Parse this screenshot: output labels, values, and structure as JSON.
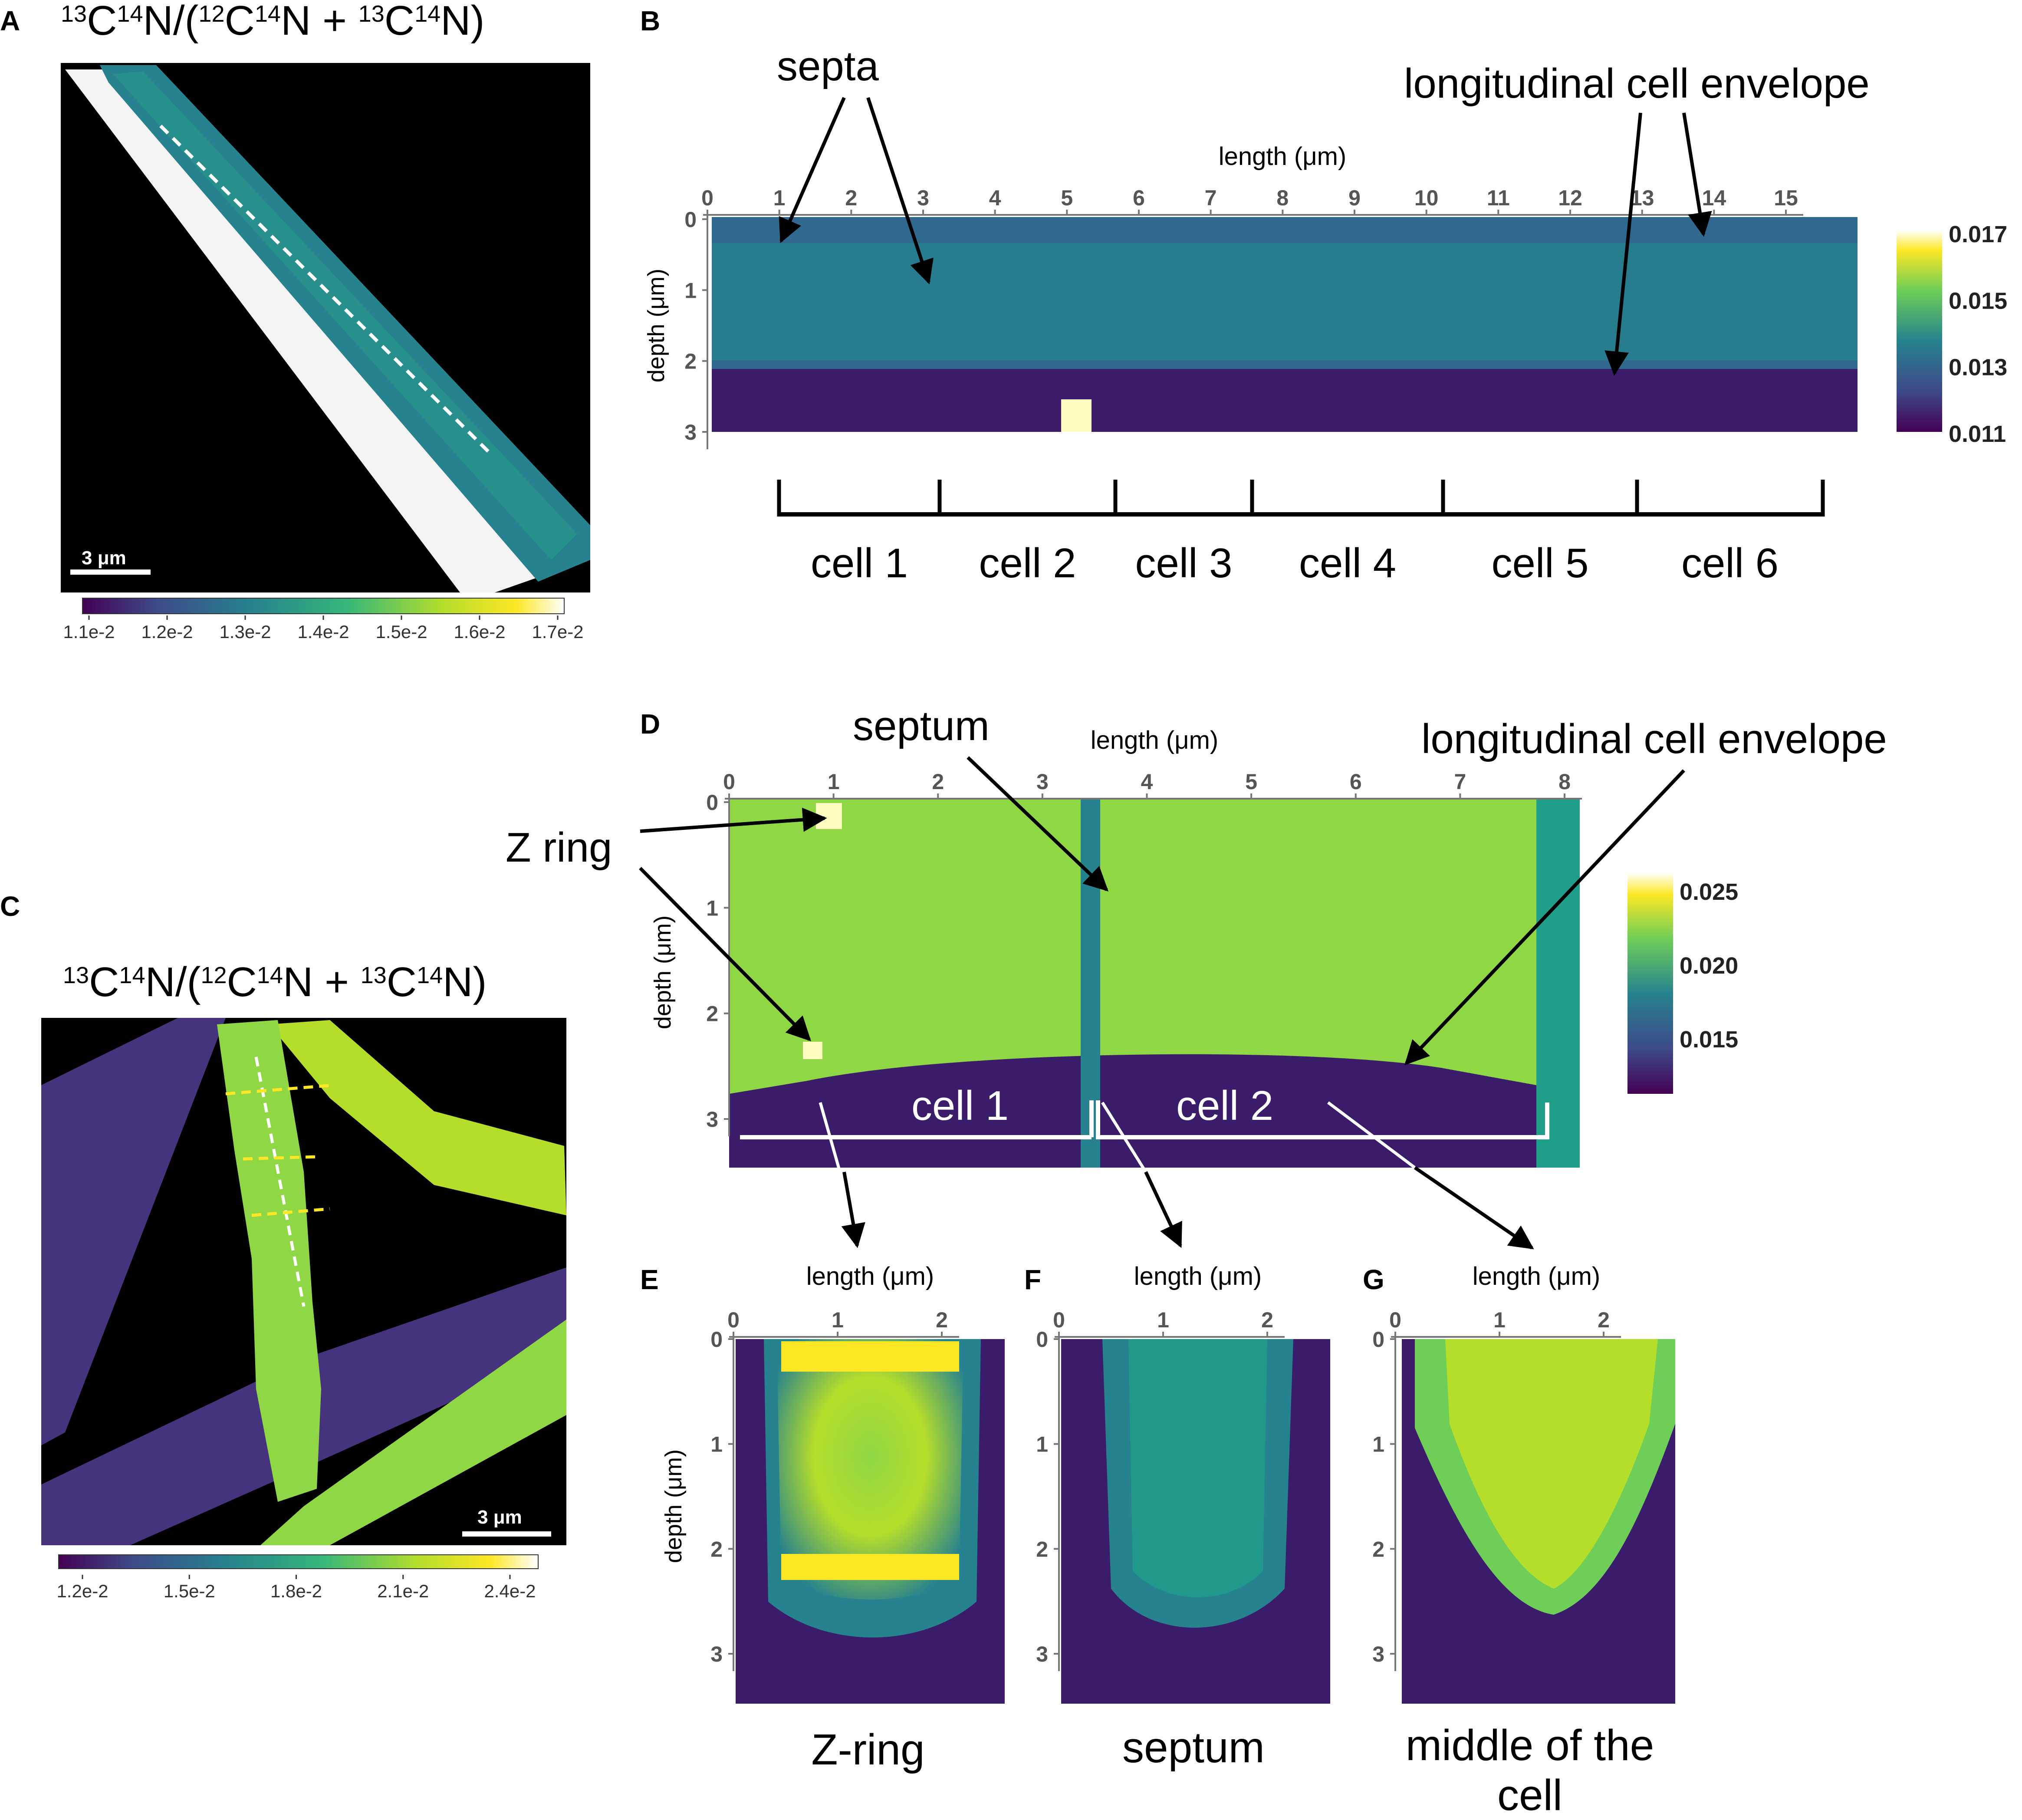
{
  "colors": {
    "viridis": [
      "#440154",
      "#482878",
      "#3e4989",
      "#31688e",
      "#26828e",
      "#1f9e89",
      "#35b779",
      "#6ece58",
      "#b5de2b",
      "#fde725",
      "#ffffff"
    ],
    "arrow": "#000000",
    "background": "#000000"
  },
  "panelA": {
    "letter": "A",
    "title_parts": [
      "13",
      "C",
      "14",
      "N/(",
      "12",
      "C",
      "14",
      "N + ",
      "13",
      "C",
      "14",
      "N)"
    ],
    "scalebar": "3 μm",
    "colorbar_ticks": [
      "1.1e-2",
      "1.2e-2",
      "1.3e-2",
      "1.4e-2",
      "1.5e-2",
      "1.6e-2",
      "1.7e-2"
    ]
  },
  "panelB": {
    "letter": "B",
    "xlabel": "length (μm)",
    "ylabel": "depth (μm)",
    "xticks": [
      "0",
      "1",
      "2",
      "3",
      "4",
      "5",
      "6",
      "7",
      "8",
      "9",
      "10",
      "11",
      "12",
      "13",
      "14",
      "15"
    ],
    "yticks": [
      "0",
      "1",
      "2",
      "3"
    ],
    "colorbar_ticks": [
      "0.017",
      "0.015",
      "0.013",
      "0.011"
    ],
    "annotations": {
      "septa": "septa",
      "envelope": "longitudinal cell envelope"
    },
    "cells": [
      "cell 1",
      "cell 2",
      "cell 3",
      "cell 4",
      "cell 5",
      "cell 6"
    ]
  },
  "panelC": {
    "letter": "C",
    "title_parts": [
      "13",
      "C",
      "14",
      "N/(",
      "12",
      "C",
      "14",
      "N + ",
      "13",
      "C",
      "14",
      "N)"
    ],
    "scalebar": "3 μm",
    "colorbar_ticks": [
      "1.2e-2",
      "1.5e-2",
      "1.8e-2",
      "2.1e-2",
      "2.4e-2"
    ]
  },
  "panelD": {
    "letter": "D",
    "xlabel": "length (μm)",
    "ylabel": "depth (μm)",
    "xticks": [
      "0",
      "1",
      "2",
      "3",
      "4",
      "5",
      "6",
      "7",
      "8"
    ],
    "yticks": [
      "0",
      "1",
      "2",
      "3"
    ],
    "colorbar_ticks": [
      "0.025",
      "0.020",
      "0.015"
    ],
    "annotations": {
      "septum": "septum",
      "zring": "Z ring",
      "envelope": "longitudinal cell envelope"
    },
    "cells": [
      "cell 1",
      "cell 2"
    ]
  },
  "panelE": {
    "letter": "E",
    "xlabel": "length (μm)",
    "ylabel": "depth (μm)",
    "xticks": [
      "0",
      "1",
      "2"
    ],
    "yticks": [
      "0",
      "1",
      "2",
      "3"
    ],
    "caption": "Z-ring"
  },
  "panelF": {
    "letter": "F",
    "xlabel": "length (μm)",
    "xticks": [
      "0",
      "1",
      "2"
    ],
    "yticks": [
      "0",
      "1",
      "2",
      "3"
    ],
    "caption": "septum"
  },
  "panelG": {
    "letter": "G",
    "xlabel": "length (μm)",
    "xticks": [
      "0",
      "1",
      "2"
    ],
    "yticks": [
      "0",
      "1",
      "2",
      "3"
    ],
    "caption_lines": [
      "middle of the",
      "cell"
    ]
  }
}
